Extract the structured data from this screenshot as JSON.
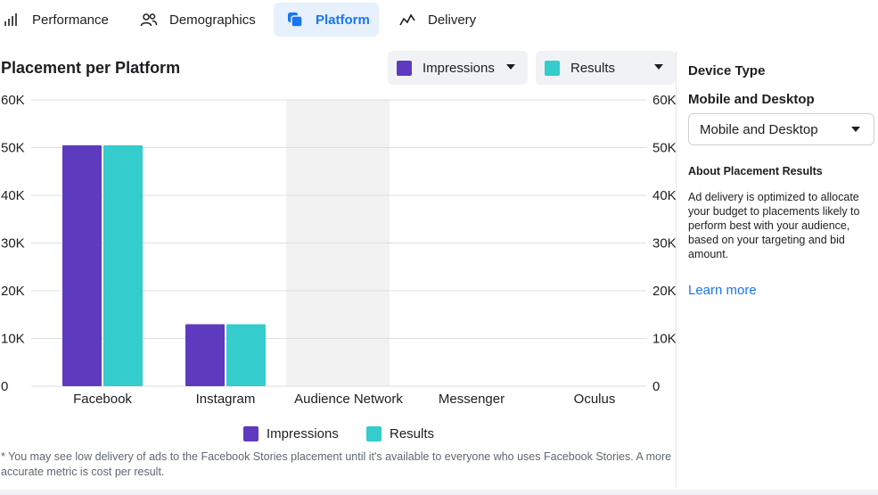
{
  "tabs": [
    {
      "label": "Performance",
      "icon": "bar-chart-icon",
      "active": false
    },
    {
      "label": "Demographics",
      "icon": "people-icon",
      "active": false
    },
    {
      "label": "Platform",
      "icon": "platform-icon",
      "active": true
    },
    {
      "label": "Delivery",
      "icon": "delivery-line-icon",
      "active": false
    }
  ],
  "chart_header": {
    "title": "Placement per Platform",
    "left_metric": "Impressions",
    "right_metric": "Results"
  },
  "colors": {
    "impressions": "#5e3abf",
    "results": "#34cccc",
    "accent": "#1877f2",
    "highlight_column": "#f2f2f2",
    "grid": "#dddfe2"
  },
  "chart_data": {
    "type": "bar",
    "title": "Placement per Platform",
    "categories": [
      "Facebook",
      "Instagram",
      "Audience Network",
      "Messenger",
      "Oculus"
    ],
    "series": [
      {
        "name": "Impressions",
        "values": [
          50500,
          13000,
          0,
          0,
          0
        ],
        "axis": "left"
      },
      {
        "name": "Results",
        "values": [
          50500,
          13000,
          0,
          0,
          0
        ],
        "axis": "right"
      }
    ],
    "ylim": [
      0,
      60000
    ],
    "y_ticks": [
      "0",
      "10K",
      "20K",
      "30K",
      "40K",
      "50K",
      "60K"
    ],
    "y2_ticks": [
      "0",
      "10K",
      "20K",
      "30K",
      "40K",
      "50K",
      "60K"
    ],
    "highlighted_category": "Audience Network",
    "grid": true,
    "legend_position": "bottom"
  },
  "legend": {
    "impressions": "Impressions",
    "results": "Results"
  },
  "footnote": "* You may see low delivery of ads to the Facebook Stories placement until it's available to everyone who uses Facebook Stories. A more accurate metric is cost per result.",
  "panel": {
    "device_type_heading": "Device Type",
    "device_type_sub": "Mobile and Desktop",
    "device_type_value": "Mobile and Desktop",
    "about_heading": "About Placement Results",
    "about_text": "Ad delivery is optimized to allocate your budget to placements likely to perform best with your audience, based on your targeting and bid amount.",
    "learn_more": "Learn more"
  }
}
